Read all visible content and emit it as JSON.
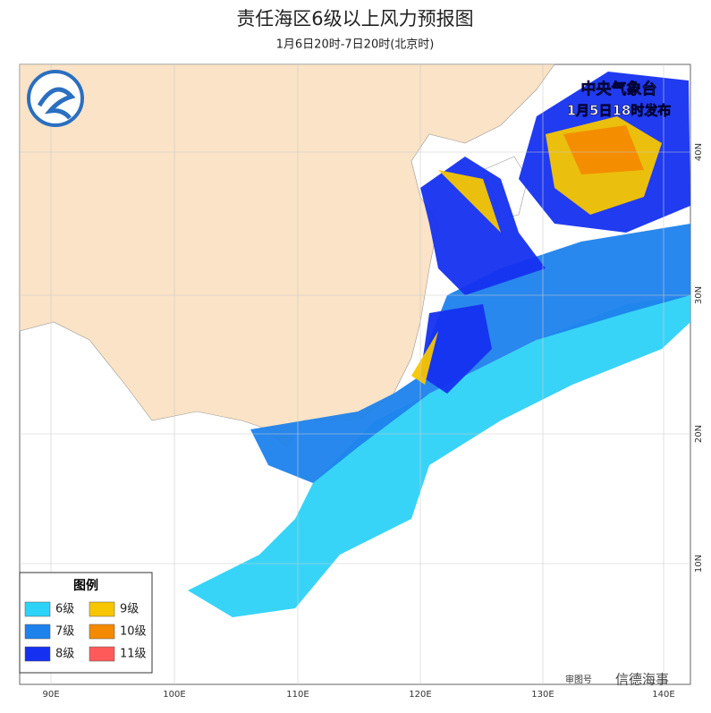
{
  "header": {
    "title": "责任海区6级以上风力预报图",
    "subtitle": "1月6日20时-7日20时(北京时)"
  },
  "publisher": {
    "agency": "中央气象台",
    "issued": "1月5日18时发布"
  },
  "legend": {
    "title": "图例",
    "items": [
      {
        "label": "6级",
        "color": "#2dd2f7"
      },
      {
        "label": "7级",
        "color": "#1e82ec"
      },
      {
        "label": "8级",
        "color": "#1530f0"
      },
      {
        "label": "9级",
        "color": "#f7c600"
      },
      {
        "label": "10级",
        "color": "#f48a00"
      },
      {
        "label": "11级",
        "color": "#ff5a5a"
      }
    ]
  },
  "axes": {
    "longitude": [
      "90E",
      "100E",
      "110E",
      "120E",
      "130E",
      "140E"
    ],
    "latitude": [
      "40N",
      "30N",
      "20N",
      "10N"
    ]
  },
  "footer": {
    "code": "审图号",
    "watermark": "信德海事"
  }
}
